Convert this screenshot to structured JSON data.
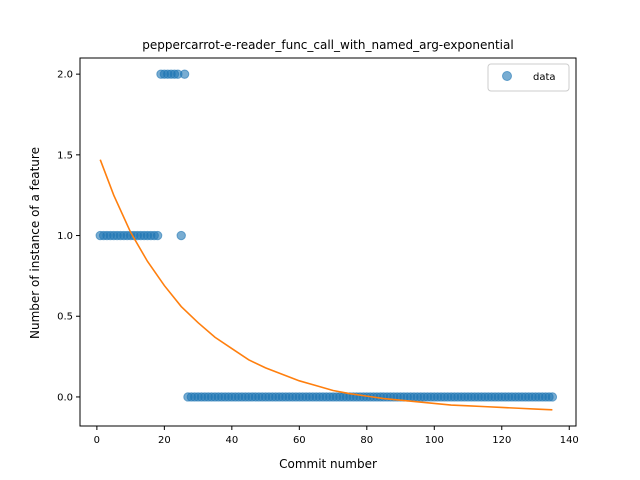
{
  "chart_data": {
    "type": "scatter",
    "title": "peppercarrot-e-reader_func_call_with_named_arg-exponential",
    "xlabel": "Commit number",
    "ylabel": "Number of instance of a feature",
    "xlim": [
      -5,
      142
    ],
    "ylim": [
      -0.18,
      2.1
    ],
    "xticks": [
      0,
      20,
      40,
      60,
      80,
      100,
      120,
      140
    ],
    "yticks": [
      0.0,
      0.5,
      1.0,
      1.5,
      2.0
    ],
    "xtick_labels": [
      "0",
      "20",
      "40",
      "60",
      "80",
      "100",
      "120",
      "140"
    ],
    "ytick_labels": [
      "0.0",
      "0.5",
      "1.0",
      "1.5",
      "2.0"
    ],
    "legend": {
      "position": "top-right",
      "entries": [
        "data"
      ]
    },
    "colors": {
      "data": "#1f77b4",
      "fit": "#ff7f0e"
    },
    "series": [
      {
        "name": "data",
        "kind": "scatter",
        "points": [
          [
            1,
            1
          ],
          [
            2,
            1
          ],
          [
            3,
            1
          ],
          [
            4,
            1
          ],
          [
            5,
            1
          ],
          [
            6,
            1
          ],
          [
            7,
            1
          ],
          [
            8,
            1
          ],
          [
            9,
            1
          ],
          [
            10,
            1
          ],
          [
            11,
            1
          ],
          [
            12,
            1
          ],
          [
            13,
            1
          ],
          [
            14,
            1
          ],
          [
            15,
            1
          ],
          [
            16,
            1
          ],
          [
            17,
            1
          ],
          [
            18,
            1
          ],
          [
            19,
            2
          ],
          [
            20,
            2
          ],
          [
            21,
            2
          ],
          [
            22,
            2
          ],
          [
            23,
            2
          ],
          [
            24,
            2
          ],
          [
            25,
            1
          ],
          [
            26,
            2
          ],
          [
            27,
            0
          ],
          [
            28,
            0
          ],
          [
            29,
            0
          ],
          [
            30,
            0
          ],
          [
            31,
            0
          ],
          [
            32,
            0
          ],
          [
            33,
            0
          ],
          [
            34,
            0
          ],
          [
            35,
            0
          ],
          [
            36,
            0
          ],
          [
            37,
            0
          ],
          [
            38,
            0
          ],
          [
            39,
            0
          ],
          [
            40,
            0
          ],
          [
            41,
            0
          ],
          [
            42,
            0
          ],
          [
            43,
            0
          ],
          [
            44,
            0
          ],
          [
            45,
            0
          ],
          [
            46,
            0
          ],
          [
            47,
            0
          ],
          [
            48,
            0
          ],
          [
            49,
            0
          ],
          [
            50,
            0
          ],
          [
            51,
            0
          ],
          [
            52,
            0
          ],
          [
            53,
            0
          ],
          [
            54,
            0
          ],
          [
            55,
            0
          ],
          [
            56,
            0
          ],
          [
            57,
            0
          ],
          [
            58,
            0
          ],
          [
            59,
            0
          ],
          [
            60,
            0
          ],
          [
            61,
            0
          ],
          [
            62,
            0
          ],
          [
            63,
            0
          ],
          [
            64,
            0
          ],
          [
            65,
            0
          ],
          [
            66,
            0
          ],
          [
            67,
            0
          ],
          [
            68,
            0
          ],
          [
            69,
            0
          ],
          [
            70,
            0
          ],
          [
            71,
            0
          ],
          [
            72,
            0
          ],
          [
            73,
            0
          ],
          [
            74,
            0
          ],
          [
            75,
            0
          ],
          [
            76,
            0
          ],
          [
            77,
            0
          ],
          [
            78,
            0
          ],
          [
            79,
            0
          ],
          [
            80,
            0
          ],
          [
            81,
            0
          ],
          [
            82,
            0
          ],
          [
            83,
            0
          ],
          [
            84,
            0
          ],
          [
            85,
            0
          ],
          [
            86,
            0
          ],
          [
            87,
            0
          ],
          [
            88,
            0
          ],
          [
            89,
            0
          ],
          [
            90,
            0
          ],
          [
            91,
            0
          ],
          [
            92,
            0
          ],
          [
            93,
            0
          ],
          [
            94,
            0
          ],
          [
            95,
            0
          ],
          [
            96,
            0
          ],
          [
            97,
            0
          ],
          [
            98,
            0
          ],
          [
            99,
            0
          ],
          [
            100,
            0
          ],
          [
            101,
            0
          ],
          [
            102,
            0
          ],
          [
            103,
            0
          ],
          [
            104,
            0
          ],
          [
            105,
            0
          ],
          [
            106,
            0
          ],
          [
            107,
            0
          ],
          [
            108,
            0
          ],
          [
            109,
            0
          ],
          [
            110,
            0
          ],
          [
            111,
            0
          ],
          [
            112,
            0
          ],
          [
            113,
            0
          ],
          [
            114,
            0
          ],
          [
            115,
            0
          ],
          [
            116,
            0
          ],
          [
            117,
            0
          ],
          [
            118,
            0
          ],
          [
            119,
            0
          ],
          [
            120,
            0
          ],
          [
            121,
            0
          ],
          [
            122,
            0
          ],
          [
            123,
            0
          ],
          [
            124,
            0
          ],
          [
            125,
            0
          ],
          [
            126,
            0
          ],
          [
            127,
            0
          ],
          [
            128,
            0
          ],
          [
            129,
            0
          ],
          [
            130,
            0
          ],
          [
            131,
            0
          ],
          [
            132,
            0
          ],
          [
            133,
            0
          ],
          [
            134,
            0
          ],
          [
            135,
            0
          ]
        ]
      },
      {
        "kind": "line",
        "points": [
          [
            1,
            1.47
          ],
          [
            5,
            1.25
          ],
          [
            10,
            1.02
          ],
          [
            15,
            0.84
          ],
          [
            20,
            0.69
          ],
          [
            25,
            0.56
          ],
          [
            30,
            0.46
          ],
          [
            35,
            0.37
          ],
          [
            40,
            0.3
          ],
          [
            45,
            0.23
          ],
          [
            50,
            0.18
          ],
          [
            55,
            0.14
          ],
          [
            60,
            0.1
          ],
          [
            65,
            0.07
          ],
          [
            70,
            0.04
          ],
          [
            75,
            0.02
          ],
          [
            80,
            0.005
          ],
          [
            85,
            -0.01
          ],
          [
            90,
            -0.02
          ],
          [
            95,
            -0.03
          ],
          [
            100,
            -0.04
          ],
          [
            105,
            -0.05
          ],
          [
            110,
            -0.055
          ],
          [
            115,
            -0.06
          ],
          [
            120,
            -0.065
          ],
          [
            125,
            -0.07
          ],
          [
            130,
            -0.075
          ],
          [
            135,
            -0.08
          ]
        ]
      }
    ]
  }
}
